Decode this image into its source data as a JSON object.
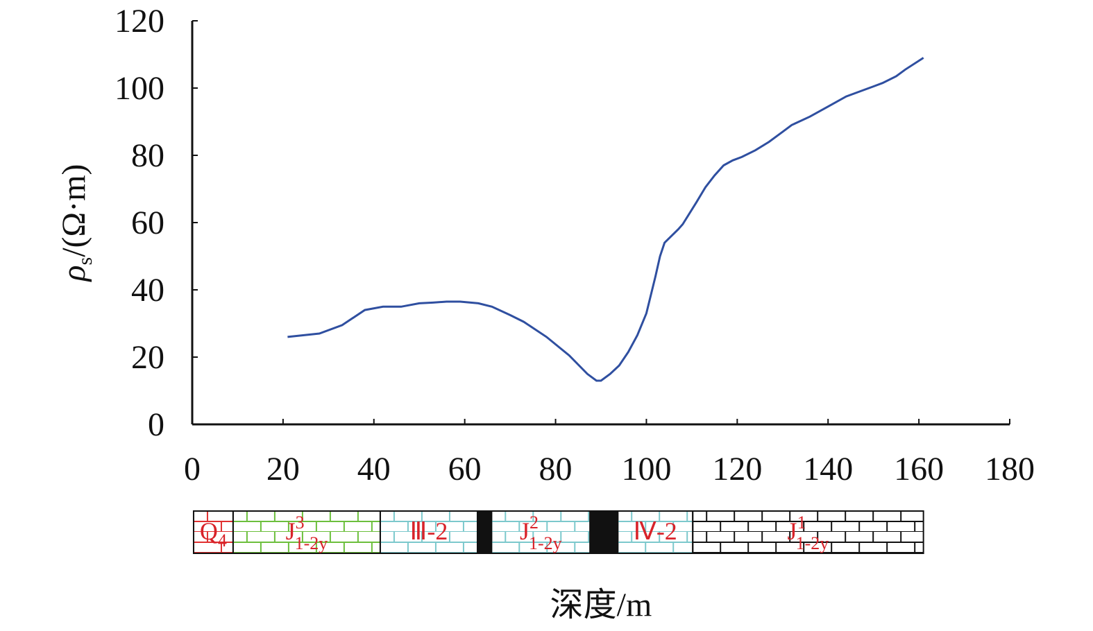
{
  "chart_data": {
    "type": "line",
    "xlabel": "深度/m",
    "ylabel": {
      "symbol": "ρ",
      "sub": "s",
      "unit": "/(Ω·m)"
    },
    "xlim": [
      0,
      180
    ],
    "xticks": [
      0,
      20,
      40,
      60,
      80,
      100,
      120,
      140,
      160,
      180
    ],
    "ylim": [
      0,
      120
    ],
    "yticks": [
      0,
      20,
      40,
      60,
      80,
      100,
      120
    ],
    "series": [
      {
        "color": "#2f4fa0",
        "x": [
          21,
          28,
          33,
          38,
          42,
          46,
          50,
          53,
          56,
          59,
          63,
          66,
          70,
          73,
          78,
          83,
          87,
          89,
          90,
          92,
          94,
          96,
          98,
          100,
          102,
          103,
          104,
          107,
          108,
          111,
          113,
          115,
          117,
          119,
          121,
          124,
          127,
          130,
          132,
          136,
          140,
          144,
          147,
          150,
          152,
          155,
          157,
          161
        ],
        "values": [
          26,
          27,
          29.5,
          34,
          35,
          35,
          36,
          36.2,
          36.5,
          36.5,
          36,
          35,
          32.5,
          30.5,
          26,
          20.5,
          15,
          13,
          13,
          15,
          17.5,
          21.5,
          26.5,
          33,
          44,
          50,
          54,
          58,
          59.5,
          66,
          70.5,
          74,
          77,
          78.5,
          79.5,
          81.5,
          84,
          87,
          89,
          91.5,
          94.5,
          97.5,
          99,
          100.5,
          101.5,
          103.5,
          105.5,
          109
        ]
      }
    ],
    "strata": [
      {
        "from": 0.3,
        "to": 9,
        "color": "#e03030",
        "label": {
          "text": "Q",
          "sub": "4"
        }
      },
      {
        "from": 9,
        "to": 41.4,
        "color": "#6cbf3c",
        "label": {
          "text": "J",
          "sup": "3",
          "sub": "1-2y"
        }
      },
      {
        "from": 41.4,
        "to": 62.8,
        "color": "#7cc8cc",
        "label": {
          "text": "Ⅲ-2"
        }
      },
      {
        "from": 62.8,
        "to": 65.9,
        "color": "#111111"
      },
      {
        "from": 65.9,
        "to": 87.6,
        "color": "#7cc8cc",
        "label": {
          "text": "J",
          "sup": "2",
          "sub": "1-2y"
        }
      },
      {
        "from": 87.6,
        "to": 93.7,
        "color": "#111111"
      },
      {
        "from": 93.7,
        "to": 110.2,
        "color": "#7cc8cc",
        "label": {
          "text": "Ⅳ-2"
        }
      },
      {
        "from": 110.2,
        "to": 161,
        "color": "#111111",
        "label": {
          "text": "J",
          "sup": "1",
          "sub": "1-2y"
        }
      }
    ]
  }
}
